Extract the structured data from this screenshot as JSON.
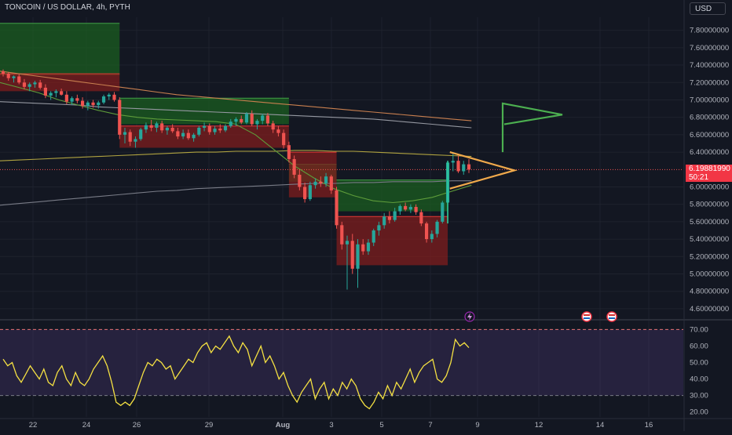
{
  "header": {
    "symbol": "TONCOIN / US DOLLAR, 4h, PYTH",
    "currency": "USD"
  },
  "price_axis": {
    "labels": [
      "7.80000000",
      "7.60000000",
      "7.40000000",
      "7.20000000",
      "7.00000000",
      "6.80000000",
      "6.60000000",
      "6.40000000",
      "6.00000000",
      "5.80000000",
      "5.60000000",
      "5.40000000",
      "5.20000000",
      "5.00000000",
      "4.80000000",
      "4.60000000"
    ]
  },
  "last_price": {
    "value": "6.19881990",
    "countdown": "50:21"
  },
  "rsi_axis": {
    "labels": [
      "70.00",
      "60.00",
      "50.00",
      "40.00",
      "30.00",
      "20.00"
    ]
  },
  "time_axis": {
    "labels": [
      "22",
      "24",
      "26",
      "29",
      "Aug",
      "3",
      "5",
      "7",
      "9",
      "12",
      "14",
      "16"
    ]
  },
  "colors": {
    "background": "#131722",
    "up": "#26a69a",
    "down": "#ef5350",
    "rsi_line": "#f5e142",
    "rsi_band": "#7e57c2",
    "pennant": "#f0a94b",
    "flag": "#4caf50",
    "cloud_green": "#1b5e20",
    "cloud_red": "#7f1d1d"
  },
  "chart_data": [
    {
      "type": "candlestick",
      "title": "TONCOIN / US DOLLAR, 4h, PYTH",
      "x_labels": [
        "22",
        "24",
        "26",
        "29",
        "Aug",
        "3",
        "5",
        "7",
        "9",
        "12",
        "14",
        "16"
      ],
      "ylim": [
        4.5,
        7.95
      ],
      "log_scale": false,
      "grid": true,
      "ohlc": [
        [
          7.33,
          7.35,
          7.27,
          7.3
        ],
        [
          7.3,
          7.32,
          7.22,
          7.25
        ],
        [
          7.25,
          7.28,
          7.2,
          7.27
        ],
        [
          7.27,
          7.3,
          7.18,
          7.2
        ],
        [
          7.2,
          7.24,
          7.12,
          7.15
        ],
        [
          7.15,
          7.2,
          7.1,
          7.18
        ],
        [
          7.18,
          7.22,
          7.14,
          7.2
        ],
        [
          7.2,
          7.23,
          7.12,
          7.14
        ],
        [
          7.14,
          7.18,
          7.02,
          7.05
        ],
        [
          7.05,
          7.1,
          7.0,
          7.08
        ],
        [
          7.08,
          7.12,
          7.03,
          7.1
        ],
        [
          7.1,
          7.13,
          7.05,
          7.06
        ],
        [
          7.06,
          7.1,
          6.95,
          6.98
        ],
        [
          6.98,
          7.04,
          6.94,
          7.02
        ],
        [
          7.02,
          7.06,
          6.96,
          6.99
        ],
        [
          6.99,
          7.03,
          6.9,
          6.93
        ],
        [
          6.93,
          6.99,
          6.88,
          6.97
        ],
        [
          6.97,
          7.0,
          6.91,
          6.94
        ],
        [
          6.94,
          6.99,
          6.9,
          6.97
        ],
        [
          6.97,
          7.06,
          6.95,
          7.04
        ],
        [
          7.04,
          7.08,
          7.0,
          7.06
        ],
        [
          7.06,
          7.09,
          6.98,
          7.0
        ],
        [
          7.0,
          7.03,
          6.55,
          6.6
        ],
        [
          6.6,
          6.68,
          6.5,
          6.63
        ],
        [
          6.63,
          6.66,
          6.47,
          6.52
        ],
        [
          6.52,
          6.58,
          6.45,
          6.55
        ],
        [
          6.55,
          6.68,
          6.53,
          6.66
        ],
        [
          6.66,
          6.74,
          6.62,
          6.71
        ],
        [
          6.71,
          6.77,
          6.64,
          6.68
        ],
        [
          6.68,
          6.75,
          6.63,
          6.73
        ],
        [
          6.73,
          6.76,
          6.62,
          6.65
        ],
        [
          6.65,
          6.7,
          6.6,
          6.68
        ],
        [
          6.68,
          6.72,
          6.62,
          6.64
        ],
        [
          6.64,
          6.68,
          6.55,
          6.58
        ],
        [
          6.58,
          6.66,
          6.55,
          6.62
        ],
        [
          6.62,
          6.66,
          6.54,
          6.56
        ],
        [
          6.56,
          6.62,
          6.52,
          6.6
        ],
        [
          6.6,
          6.7,
          6.58,
          6.68
        ],
        [
          6.68,
          6.74,
          6.64,
          6.7
        ],
        [
          6.7,
          6.73,
          6.6,
          6.63
        ],
        [
          6.63,
          6.7,
          6.6,
          6.67
        ],
        [
          6.67,
          6.72,
          6.62,
          6.65
        ],
        [
          6.65,
          6.72,
          6.63,
          6.7
        ],
        [
          6.7,
          6.78,
          6.68,
          6.75
        ],
        [
          6.75,
          6.8,
          6.7,
          6.78
        ],
        [
          6.78,
          6.82,
          6.72,
          6.74
        ],
        [
          6.74,
          6.86,
          6.72,
          6.84
        ],
        [
          6.84,
          6.88,
          6.7,
          6.72
        ],
        [
          6.72,
          6.78,
          6.66,
          6.76
        ],
        [
          6.76,
          6.84,
          6.72,
          6.82
        ],
        [
          6.82,
          6.85,
          6.7,
          6.73
        ],
        [
          6.73,
          6.76,
          6.62,
          6.66
        ],
        [
          6.66,
          6.7,
          6.58,
          6.62
        ],
        [
          6.62,
          6.66,
          6.44,
          6.48
        ],
        [
          6.48,
          6.52,
          6.28,
          6.32
        ],
        [
          6.32,
          6.36,
          6.1,
          6.14
        ],
        [
          6.14,
          6.2,
          5.96,
          6.0
        ],
        [
          6.0,
          6.05,
          5.82,
          5.86
        ],
        [
          5.86,
          6.06,
          5.84,
          6.02
        ],
        [
          6.02,
          6.1,
          5.98,
          6.06
        ],
        [
          6.06,
          6.12,
          6.0,
          6.04
        ],
        [
          6.04,
          6.16,
          6.0,
          6.12
        ],
        [
          6.12,
          6.14,
          5.92,
          5.96
        ],
        [
          5.96,
          6.0,
          5.52,
          5.56
        ],
        [
          5.56,
          5.6,
          5.28,
          5.34
        ],
        [
          5.34,
          5.44,
          4.82,
          5.38
        ],
        [
          5.38,
          5.46,
          5.0,
          5.06
        ],
        [
          5.06,
          5.4,
          4.84,
          5.34
        ],
        [
          5.34,
          5.4,
          5.22,
          5.26
        ],
        [
          5.26,
          5.4,
          5.22,
          5.36
        ],
        [
          5.36,
          5.52,
          5.32,
          5.5
        ],
        [
          5.5,
          5.6,
          5.44,
          5.56
        ],
        [
          5.56,
          5.7,
          5.52,
          5.66
        ],
        [
          5.66,
          5.72,
          5.58,
          5.62
        ],
        [
          5.62,
          5.76,
          5.6,
          5.72
        ],
        [
          5.72,
          5.8,
          5.68,
          5.78
        ],
        [
          5.78,
          5.82,
          5.72,
          5.74
        ],
        [
          5.74,
          5.8,
          5.7,
          5.77
        ],
        [
          5.77,
          5.8,
          5.68,
          5.71
        ],
        [
          5.71,
          5.74,
          5.55,
          5.58
        ],
        [
          5.58,
          5.6,
          5.36,
          5.4
        ],
        [
          5.4,
          5.5,
          5.36,
          5.46
        ],
        [
          5.46,
          5.62,
          5.42,
          5.6
        ],
        [
          5.6,
          5.84,
          5.58,
          5.82
        ],
        [
          5.82,
          6.3,
          5.8,
          6.28
        ],
        [
          6.28,
          6.4,
          6.18,
          6.3
        ],
        [
          6.3,
          6.36,
          6.16,
          6.18
        ],
        [
          6.18,
          6.3,
          6.14,
          6.26
        ],
        [
          6.26,
          6.32,
          6.16,
          6.2
        ]
      ],
      "moving_averages": [
        {
          "color": "#9598a1",
          "values": [
            6.98,
            6.97,
            6.96,
            6.95,
            6.94,
            6.92,
            6.91,
            6.9,
            6.89,
            6.88,
            6.87,
            6.86,
            6.85,
            6.84,
            6.83,
            6.82,
            6.81,
            6.8,
            6.79,
            6.78,
            6.76,
            6.74,
            6.72,
            6.7,
            6.68
          ]
        },
        {
          "color": "#b0a340",
          "values": [
            6.3,
            6.31,
            6.32,
            6.33,
            6.34,
            6.35,
            6.36,
            6.37,
            6.38,
            6.39,
            6.4,
            6.4,
            6.41,
            6.41,
            6.41,
            6.42,
            6.42,
            6.41,
            6.41,
            6.4,
            6.39,
            6.38,
            6.37,
            6.36,
            6.35
          ]
        },
        {
          "color": "#787b86",
          "values": [
            5.79,
            5.81,
            5.83,
            5.85,
            5.87,
            5.89,
            5.91,
            5.93,
            5.95,
            5.96,
            5.98,
            5.99,
            6.0,
            6.01,
            6.02,
            6.03,
            6.04,
            6.04,
            6.05,
            6.05,
            6.06,
            6.06,
            6.06,
            6.07,
            6.07
          ]
        },
        {
          "color": "#c87f4f",
          "values": [
            7.33,
            7.3,
            7.27,
            7.24,
            7.21,
            7.18,
            7.15,
            7.12,
            7.09,
            7.06,
            7.04,
            7.02,
            7.0,
            6.98,
            6.96,
            6.94,
            6.92,
            6.9,
            6.88,
            6.86,
            6.84,
            6.82,
            6.8,
            6.78,
            6.76
          ]
        },
        {
          "color": "#5e9c3a",
          "values": [
            7.2,
            7.14,
            7.08,
            7.0,
            6.94,
            6.88,
            6.83,
            6.8,
            6.78,
            6.77,
            6.76,
            6.75,
            6.72,
            6.6,
            6.42,
            6.24,
            6.1,
            5.98,
            5.9,
            5.84,
            5.82,
            5.84,
            5.88,
            5.95,
            6.02
          ]
        }
      ],
      "cloud_segments": [
        {
          "side": "green",
          "x0": 0,
          "x1": 22,
          "top": 7.88,
          "bottom": 7.28
        },
        {
          "side": "red",
          "x0": 0,
          "x1": 22,
          "top": 7.3,
          "bottom": 7.1
        },
        {
          "side": "green",
          "x0": 22,
          "x1": 54,
          "top": 7.02,
          "bottom": 6.72
        },
        {
          "side": "red",
          "x0": 22,
          "x1": 54,
          "top": 6.7,
          "bottom": 6.45
        },
        {
          "side": "green",
          "x0": 54,
          "x1": 63,
          "top": 6.26,
          "bottom": 6.06
        },
        {
          "side": "red",
          "x0": 54,
          "x1": 63,
          "top": 6.4,
          "bottom": 5.88
        },
        {
          "side": "green",
          "x0": 63,
          "x1": 84,
          "top": 6.08,
          "bottom": 5.72
        },
        {
          "side": "red",
          "x0": 63,
          "x1": 84,
          "top": 5.66,
          "bottom": 5.1
        }
      ],
      "last_price": 6.1988199
    },
    {
      "type": "line",
      "title": "RSI",
      "ylim": [
        17,
        74
      ],
      "bands": [
        30,
        70
      ],
      "series": [
        {
          "values": [
            52,
            48,
            50,
            42,
            38,
            43,
            48,
            44,
            40,
            46,
            38,
            36,
            44,
            48,
            40,
            36,
            44,
            38,
            36,
            40,
            46,
            50,
            54,
            48,
            38,
            26,
            24,
            26,
            24,
            28,
            36,
            44,
            50,
            48,
            52,
            50,
            46,
            48,
            40,
            44,
            48,
            52,
            50,
            56,
            60,
            62,
            56,
            60,
            58,
            62,
            66,
            60,
            56,
            62,
            58,
            48,
            54,
            60,
            50,
            54,
            48,
            40,
            44,
            36,
            30,
            26,
            32,
            36,
            40,
            28,
            34,
            38,
            28,
            34,
            30,
            38,
            34,
            40,
            36,
            28,
            24,
            22,
            26,
            32,
            28,
            36,
            30,
            38,
            34,
            40,
            46,
            38,
            44,
            48,
            50,
            52,
            40,
            38,
            42,
            50,
            64,
            60,
            62,
            59
          ]
        }
      ]
    }
  ]
}
